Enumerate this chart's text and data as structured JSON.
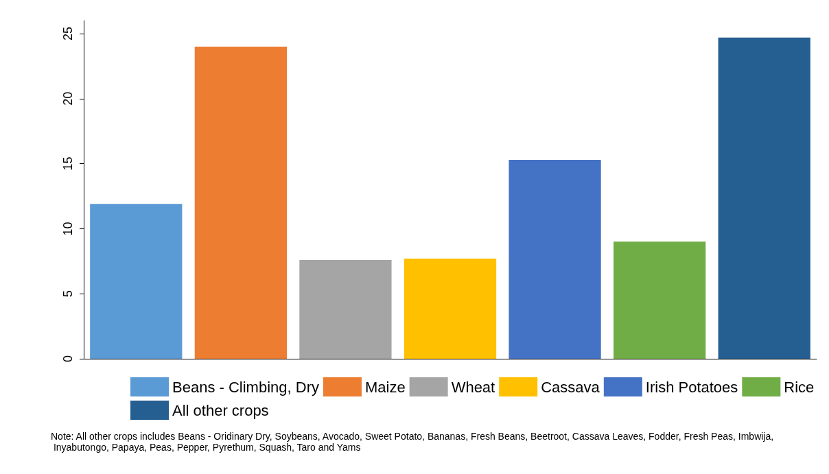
{
  "chart_data": {
    "type": "bar",
    "categories": [
      null,
      null,
      null,
      null,
      null,
      null,
      null
    ],
    "series": [
      {
        "name": "Beans - Climbing, Dry",
        "color": "#5b9bd5",
        "values": [
          11.9,
          null,
          null,
          null,
          null,
          null,
          null
        ]
      },
      {
        "name": "Maize",
        "color": "#ed7d31",
        "values": [
          null,
          24.0,
          null,
          null,
          null,
          null,
          null
        ]
      },
      {
        "name": "Wheat",
        "color": "#a5a5a5",
        "values": [
          null,
          null,
          7.6,
          null,
          null,
          null,
          null
        ]
      },
      {
        "name": "Cassava",
        "color": "#ffc000",
        "values": [
          null,
          null,
          null,
          7.7,
          null,
          null,
          null
        ]
      },
      {
        "name": "Irish Potatoes",
        "color": "#4472c4",
        "values": [
          null,
          null,
          null,
          null,
          15.3,
          null,
          null
        ]
      },
      {
        "name": "Rice",
        "color": "#70ad47",
        "values": [
          null,
          null,
          null,
          null,
          null,
          9.0,
          null
        ]
      },
      {
        "name": "All other crops",
        "color": "#255e91",
        "values": [
          null,
          null,
          null,
          null,
          null,
          null,
          24.7
        ]
      }
    ],
    "ylim": [
      0,
      26
    ],
    "yticks": [
      0,
      5,
      10,
      15,
      20,
      25
    ],
    "grid": false,
    "legend": "bottom",
    "tick_labels": "y",
    "annotations": [
      "Note: All other crops includes Beans - Oridinary Dry, Soybeans, Avocado, Sweet Potato, Bananas, Fresh Beans, Beetroot, Cassava Leaves, Fodder, Fresh Peas, Imbwija, Inyabutongo, Papaya, Peas, Pepper, Pyrethum, Squash, Taro and Yams"
    ]
  }
}
